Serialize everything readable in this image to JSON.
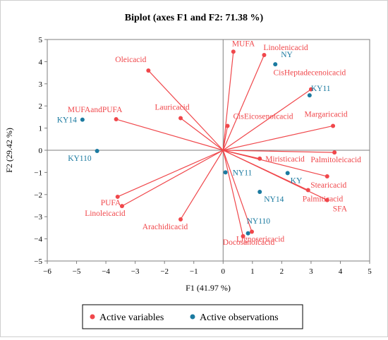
{
  "chart_data": {
    "type": "scatter",
    "title": "Biplot (axes F1 and F2: 71.38 %)",
    "xlabel": "F1 (41.97 %)",
    "ylabel": "F2 (29.42 %)",
    "xlim": [
      -6,
      5
    ],
    "ylim": [
      -5,
      5
    ],
    "xticks": [
      "−6",
      "−5",
      "−4",
      "−3",
      "−2",
      "−1",
      "0",
      "1",
      "2",
      "3",
      "4",
      "5"
    ],
    "yticks": [
      "5",
      "4",
      "3",
      "2",
      "1",
      "0",
      "−1",
      "−2",
      "−3",
      "−4",
      "−5"
    ],
    "grid": false,
    "zero_lines": true,
    "legend": {
      "placement": "bottom",
      "entries": [
        {
          "name": "Active variables",
          "color": "#f0474b"
        },
        {
          "name": "Active observations",
          "color": "#1b7aa0"
        }
      ]
    },
    "series": [
      {
        "name": "Active variables",
        "color": "#f0474b",
        "points": [
          {
            "label": "MUFA",
            "x": 0.35,
            "y": 4.45
          },
          {
            "label": "Linolenicacid",
            "x": 1.4,
            "y": 4.3
          },
          {
            "label": "Oleicacid",
            "x": -2.55,
            "y": 3.6
          },
          {
            "label": "CisHeptadecenoicacid",
            "x": 3.0,
            "y": 2.75
          },
          {
            "label": "Lauricacid",
            "x": -1.45,
            "y": 1.45
          },
          {
            "label": "MUFAandPUFA",
            "x": -3.65,
            "y": 1.4
          },
          {
            "label": "CisEicosenoicacid",
            "x": 0.15,
            "y": 1.1
          },
          {
            "label": "Margaricacid",
            "x": 3.75,
            "y": 1.1
          },
          {
            "label": "Miristicacid",
            "x": 1.25,
            "y": -0.38
          },
          {
            "label": "Palmitoleicacid",
            "x": 3.8,
            "y": -0.1
          },
          {
            "label": "Stearicacid",
            "x": 3.55,
            "y": -1.18
          },
          {
            "label": "Palmiticacid",
            "x": 2.9,
            "y": -1.8
          },
          {
            "label": "SFA",
            "x": 3.55,
            "y": -2.25
          },
          {
            "label": "PUFA",
            "x": -3.6,
            "y": -2.1
          },
          {
            "label": "Linoleicacid",
            "x": -3.45,
            "y": -2.52
          },
          {
            "label": "Arachidicacid",
            "x": -1.45,
            "y": -3.12
          },
          {
            "label": "Lignosericacid",
            "x": 0.98,
            "y": -3.68
          },
          {
            "label": "Docosanoicacid",
            "x": 0.68,
            "y": -3.88
          }
        ]
      },
      {
        "name": "Active observations",
        "color": "#1b7aa0",
        "points": [
          {
            "label": "NY",
            "x": 1.78,
            "y": 3.88
          },
          {
            "label": "KY11",
            "x": 2.95,
            "y": 2.48
          },
          {
            "label": "KY14",
            "x": -4.8,
            "y": 1.38
          },
          {
            "label": "KY110",
            "x": -4.3,
            "y": -0.03
          },
          {
            "label": "NY11",
            "x": 0.08,
            "y": -1.0
          },
          {
            "label": "KY",
            "x": 2.2,
            "y": -1.03
          },
          {
            "label": "NY14",
            "x": 1.25,
            "y": -1.88
          },
          {
            "label": "NY110",
            "x": 0.85,
            "y": -3.75
          }
        ]
      }
    ]
  }
}
